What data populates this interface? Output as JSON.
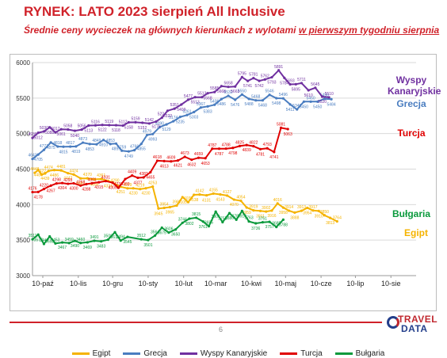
{
  "title": "RYNEK: LATO 2023 sierpień All Inclusive",
  "subtitle_prefix": "Średnie ceny wycieczek na głównych kierunkach z wylotami ",
  "subtitle_underlined": "w pierwszym tygodniu sierpnia",
  "page_number": "6",
  "logo": {
    "line1": "TRAVEL",
    "line2": "DATA"
  },
  "colors": {
    "title": "#d0222a",
    "Egipt": "#f5b300",
    "Grecja": "#4a7dc0",
    "Wyspy Kanaryjskie": "#7030a0",
    "Turcja": "#e00000",
    "Bułgaria": "#0a9a3c"
  },
  "series_labels": [
    {
      "key": "Wyspy Kanaryjskie",
      "text": "Wyspy Kanaryjskie"
    },
    {
      "key": "Grecja",
      "text": "Grecja"
    },
    {
      "key": "Turcja",
      "text": "Turcja"
    },
    {
      "key": "Bułgaria",
      "text": "Bułgaria"
    },
    {
      "key": "Egipt",
      "text": "Egipt"
    }
  ],
  "chart_data": {
    "type": "line",
    "title": "",
    "xlabel": "",
    "ylabel": "",
    "x_axis": {
      "start_date": "2022-10-01",
      "end_date": "2023-09-01",
      "tick_labels": [
        "10-paź",
        "10-lis",
        "10-gru",
        "10-sty",
        "10-lut",
        "10-mar",
        "10-kwi",
        "10-maj",
        "10-cze",
        "10-lip",
        "10-sie"
      ],
      "tick_dates": [
        "2022-10-10",
        "2022-11-10",
        "2022-12-10",
        "2023-01-10",
        "2023-02-10",
        "2023-03-10",
        "2023-04-10",
        "2023-05-10",
        "2023-06-10",
        "2023-07-10",
        "2023-08-10"
      ]
    },
    "ylim": [
      3000,
      6000
    ],
    "yticks": [
      3000,
      3500,
      4000,
      4500,
      5000,
      5500,
      6000
    ],
    "grid": true,
    "legend": "bottom",
    "series": [
      {
        "name": "Egipt",
        "points": [
          [
            "2022-10-03",
            4448
          ],
          [
            "2022-10-06",
            4487
          ],
          [
            "2022-10-09",
            4422
          ],
          [
            "2022-10-12",
            4439
          ],
          [
            "2022-10-15",
            4474
          ],
          [
            "2022-10-20",
            4486
          ],
          [
            "2022-10-26",
            4481
          ],
          [
            "2022-11-01",
            4442
          ],
          [
            "2022-11-06",
            4424
          ],
          [
            "2022-11-12",
            4369
          ],
          [
            "2022-11-18",
            4370
          ],
          [
            "2022-11-24",
            4356
          ],
          [
            "2022-11-30",
            4361
          ],
          [
            "2022-12-06",
            4334
          ],
          [
            "2022-12-12",
            4290
          ],
          [
            "2022-12-17",
            4251
          ],
          [
            "2022-12-23",
            4229
          ],
          [
            "2022-12-28",
            4230
          ],
          [
            "2023-01-03",
            4219
          ],
          [
            "2023-01-08",
            4230
          ],
          [
            "2023-01-14",
            4253
          ],
          [
            "2023-01-19",
            3945
          ],
          [
            "2023-01-24",
            3954
          ],
          [
            "2023-01-29",
            3965
          ],
          [
            "2023-02-04",
            3987
          ],
          [
            "2023-02-09",
            4105
          ],
          [
            "2023-02-14",
            4035
          ],
          [
            "2023-02-19",
            4138
          ],
          [
            "2023-02-24",
            4142
          ],
          [
            "2023-03-02",
            4131
          ],
          [
            "2023-03-08",
            4155
          ],
          [
            "2023-03-14",
            4143
          ],
          [
            "2023-03-20",
            4127
          ],
          [
            "2023-03-26",
            4070
          ],
          [
            "2023-04-01",
            4054
          ],
          [
            "2023-04-06",
            3959
          ],
          [
            "2023-04-12",
            3919
          ],
          [
            "2023-04-18",
            3911
          ],
          [
            "2023-04-23",
            3902
          ],
          [
            "2023-04-28",
            3916
          ],
          [
            "2023-05-03",
            4016
          ],
          [
            "2023-05-08",
            3958
          ],
          [
            "2023-05-13",
            3914
          ],
          [
            "2023-05-18",
            3888
          ],
          [
            "2023-05-24",
            3913
          ],
          [
            "2023-05-29",
            3954
          ],
          [
            "2023-06-03",
            3917
          ],
          [
            "2023-06-08",
            3910
          ],
          [
            "2023-06-13",
            3850
          ],
          [
            "2023-06-18",
            3813
          ],
          [
            "2023-06-24",
            3764
          ]
        ]
      },
      {
        "name": "Grecja",
        "points": [
          [
            "2022-10-01",
            4643
          ],
          [
            "2022-10-06",
            4705
          ],
          [
            "2022-10-11",
            4771
          ],
          [
            "2022-10-17",
            4875
          ],
          [
            "2022-10-23",
            4818
          ],
          [
            "2022-10-28",
            4815
          ],
          [
            "2022-11-03",
            4817
          ],
          [
            "2022-11-08",
            4819
          ],
          [
            "2022-11-14",
            4873
          ],
          [
            "2022-11-20",
            4853
          ],
          [
            "2022-11-26",
            4849
          ],
          [
            "2022-12-02",
            4910
          ],
          [
            "2022-12-08",
            4853
          ],
          [
            "2022-12-13",
            4859
          ],
          [
            "2022-12-18",
            4759
          ],
          [
            "2022-12-24",
            4749
          ],
          [
            "2022-12-29",
            4766
          ],
          [
            "2023-01-04",
            4855
          ],
          [
            "2023-01-09",
            4979
          ],
          [
            "2023-01-14",
            4993
          ],
          [
            "2023-01-20",
            5090
          ],
          [
            "2023-01-26",
            5129
          ],
          [
            "2023-02-01",
            5174
          ],
          [
            "2023-02-07",
            5235
          ],
          [
            "2023-02-13",
            5261
          ],
          [
            "2023-02-19",
            5303
          ],
          [
            "2023-02-25",
            5367
          ],
          [
            "2023-03-03",
            5383
          ],
          [
            "2023-03-09",
            5406
          ],
          [
            "2023-03-15",
            5486
          ],
          [
            "2023-03-21",
            5532
          ],
          [
            "2023-03-27",
            5476
          ],
          [
            "2023-04-02",
            5550
          ],
          [
            "2023-04-08",
            5488
          ],
          [
            "2023-04-14",
            5468
          ],
          [
            "2023-04-20",
            5468
          ],
          [
            "2023-04-26",
            5546
          ],
          [
            "2023-05-02",
            5498
          ],
          [
            "2023-05-08",
            5496
          ],
          [
            "2023-05-14",
            5411
          ],
          [
            "2023-05-20",
            5340
          ],
          [
            "2023-05-26",
            5450
          ],
          [
            "2023-06-01",
            5450
          ],
          [
            "2023-06-07",
            5450
          ],
          [
            "2023-06-13",
            5490
          ],
          [
            "2023-06-19",
            5484
          ]
        ]
      },
      {
        "name": "Wyspy Kanaryjskie",
        "points": [
          [
            "2022-10-01",
            4939
          ],
          [
            "2022-10-06",
            5012
          ],
          [
            "2022-10-11",
            5030
          ],
          [
            "2022-10-16",
            5088
          ],
          [
            "2022-10-21",
            5017
          ],
          [
            "2022-10-26",
            5061
          ],
          [
            "2022-11-01",
            5058
          ],
          [
            "2022-11-07",
            5040
          ],
          [
            "2022-11-13",
            5056
          ],
          [
            "2022-11-19",
            5113
          ],
          [
            "2022-11-25",
            5116
          ],
          [
            "2022-12-01",
            5122
          ],
          [
            "2022-12-07",
            5119
          ],
          [
            "2022-12-13",
            5118
          ],
          [
            "2022-12-19",
            5112
          ],
          [
            "2022-12-24",
            5158
          ],
          [
            "2022-12-30",
            5159
          ],
          [
            "2023-01-05",
            5152
          ],
          [
            "2023-01-11",
            5142
          ],
          [
            "2023-01-17",
            5170
          ],
          [
            "2023-01-22",
            5224
          ],
          [
            "2023-01-27",
            5322
          ],
          [
            "2023-02-02",
            5351
          ],
          [
            "2023-02-08",
            5409
          ],
          [
            "2023-02-14",
            5477
          ],
          [
            "2023-02-20",
            5513
          ],
          [
            "2023-02-26",
            5513
          ],
          [
            "2023-03-03",
            5568
          ],
          [
            "2023-03-09",
            5585
          ],
          [
            "2023-03-15",
            5668
          ],
          [
            "2023-03-21",
            5658
          ],
          [
            "2023-03-27",
            5663
          ],
          [
            "2023-04-02",
            5795
          ],
          [
            "2023-04-07",
            5741
          ],
          [
            "2023-04-12",
            5781
          ],
          [
            "2023-04-17",
            5742
          ],
          [
            "2023-04-22",
            5762
          ],
          [
            "2023-04-28",
            5793
          ],
          [
            "2023-05-04",
            5891
          ],
          [
            "2023-05-09",
            5784
          ],
          [
            "2023-05-14",
            5693
          ],
          [
            "2023-05-19",
            5695
          ],
          [
            "2023-05-24",
            5711
          ],
          [
            "2023-05-30",
            5610
          ],
          [
            "2023-06-05",
            5645
          ],
          [
            "2023-06-11",
            5520
          ],
          [
            "2023-06-17",
            5510
          ]
        ]
      },
      {
        "name": "Turcja",
        "points": [
          [
            "2022-10-01",
            4176
          ],
          [
            "2022-10-06",
            4178
          ],
          [
            "2022-10-11",
            4220
          ],
          [
            "2022-10-17",
            4267
          ],
          [
            "2022-10-22",
            4298
          ],
          [
            "2022-10-27",
            4304
          ],
          [
            "2022-11-01",
            4293
          ],
          [
            "2022-11-06",
            4300
          ],
          [
            "2022-11-12",
            4268
          ],
          [
            "2022-11-17",
            4288
          ],
          [
            "2022-11-22",
            4301
          ],
          [
            "2022-11-28",
            4315
          ],
          [
            "2022-12-04",
            4331
          ],
          [
            "2022-12-10",
            4309
          ],
          [
            "2022-12-15",
            4237
          ],
          [
            "2022-12-21",
            4360
          ],
          [
            "2022-12-27",
            4409
          ],
          [
            "2023-01-01",
            4377
          ],
          [
            "2023-01-06",
            4383
          ],
          [
            "2023-01-12",
            4455
          ],
          [
            "2023-01-18",
            4618
          ],
          [
            "2023-01-24",
            4613
          ],
          [
            "2023-01-30",
            4609
          ],
          [
            "2023-02-05",
            4621
          ],
          [
            "2023-02-11",
            4673
          ],
          [
            "2023-02-17",
            4632
          ],
          [
            "2023-02-23",
            4659
          ],
          [
            "2023-03-01",
            4653
          ],
          [
            "2023-03-07",
            4787
          ],
          [
            "2023-03-13",
            4787
          ],
          [
            "2023-03-19",
            4788
          ],
          [
            "2023-03-25",
            4798
          ],
          [
            "2023-03-31",
            4825
          ],
          [
            "2023-04-06",
            4839
          ],
          [
            "2023-04-12",
            4822
          ],
          [
            "2023-04-18",
            4781
          ],
          [
            "2023-04-24",
            4793
          ],
          [
            "2023-04-30",
            4741
          ],
          [
            "2023-05-06",
            5081
          ],
          [
            "2023-05-12",
            5063
          ]
        ]
      },
      {
        "name": "Bułgaria",
        "points": [
          [
            "2022-10-01",
            3511
          ],
          [
            "2022-10-06",
            3577
          ],
          [
            "2022-10-11",
            3446
          ],
          [
            "2022-10-16",
            3552
          ],
          [
            "2022-10-21",
            3453
          ],
          [
            "2022-10-27",
            3467
          ],
          [
            "2022-11-02",
            3459
          ],
          [
            "2022-11-07",
            3490
          ],
          [
            "2022-11-12",
            3460
          ],
          [
            "2022-11-18",
            3469
          ],
          [
            "2022-11-24",
            3491
          ],
          [
            "2022-11-30",
            3483
          ],
          [
            "2022-12-06",
            3506
          ],
          [
            "2022-12-12",
            3611
          ],
          [
            "2022-12-17",
            3494
          ],
          [
            "2022-12-23",
            3545
          ],
          [
            "2023-01-04",
            3512
          ],
          [
            "2023-01-10",
            3501
          ],
          [
            "2023-01-16",
            3564
          ],
          [
            "2023-01-22",
            3675
          ],
          [
            "2023-01-28",
            3606
          ],
          [
            "2023-02-03",
            3650
          ],
          [
            "2023-02-09",
            3744
          ],
          [
            "2023-02-15",
            3802
          ],
          [
            "2023-02-21",
            3815
          ],
          [
            "2023-02-27",
            3761
          ],
          [
            "2023-03-04",
            3695
          ],
          [
            "2023-03-10",
            3901
          ],
          [
            "2023-03-16",
            3753
          ],
          [
            "2023-03-22",
            3880
          ],
          [
            "2023-03-28",
            3787
          ],
          [
            "2023-04-02",
            3910
          ],
          [
            "2023-04-08",
            3763
          ],
          [
            "2023-04-14",
            3736
          ],
          [
            "2023-04-20",
            3751
          ],
          [
            "2023-04-26",
            3757
          ],
          [
            "2023-05-02",
            3685
          ],
          [
            "2023-05-08",
            3788
          ]
        ]
      }
    ]
  }
}
